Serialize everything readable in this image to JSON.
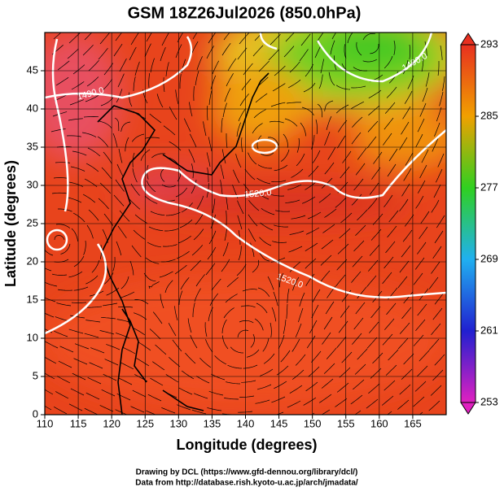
{
  "chart_data": {
    "type": "map",
    "title": "GSM 18Z26Jul2026 (850.0hPa)",
    "x_label": "Longitude (degrees)",
    "y_label": "Latitude  (degrees)",
    "xlim": [
      110,
      170
    ],
    "ylim": [
      0,
      50
    ],
    "xticks": [
      110,
      115,
      120,
      125,
      130,
      135,
      140,
      145,
      150,
      155,
      160,
      165
    ],
    "yticks": [
      0,
      5,
      10,
      15,
      20,
      25,
      30,
      35,
      40,
      45
    ],
    "grid": true,
    "colorbar": {
      "lim": [
        253,
        293
      ],
      "ticks": [
        253,
        261,
        269,
        277,
        285,
        293
      ],
      "colors": [
        "#e020c0",
        "#2020d0",
        "#20b0f0",
        "#30d020",
        "#f0a000",
        "#e83020"
      ]
    },
    "contour_labels": [
      "1490.0",
      "1490.0",
      "1520.0",
      "1520.0"
    ]
  },
  "credits": [
    "Drawing by DCL (https://www.gfd-dennou.org/library/dcl/)",
    "Data from http://database.rish.kyoto-u.ac.jp/arch/jmadata/"
  ]
}
